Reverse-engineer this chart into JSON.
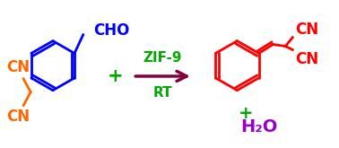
{
  "background_color": "#ffffff",
  "fig_width": 3.78,
  "fig_height": 1.65,
  "dpi": 100,
  "colors": {
    "blue": "#0000ff",
    "orange": "#ff6600",
    "green": "#00aa00",
    "red": "#ff0000",
    "purple": "#9900cc",
    "arrow": "#800040"
  },
  "cho": "CHO",
  "cn1": "CN",
  "cn2": "CN",
  "catalyst": "ZIF-9",
  "condition": "RT",
  "plus1": "+",
  "plus2": "+",
  "prod_cn1": "CN",
  "prod_cn2": "CN",
  "water": "H₂O"
}
